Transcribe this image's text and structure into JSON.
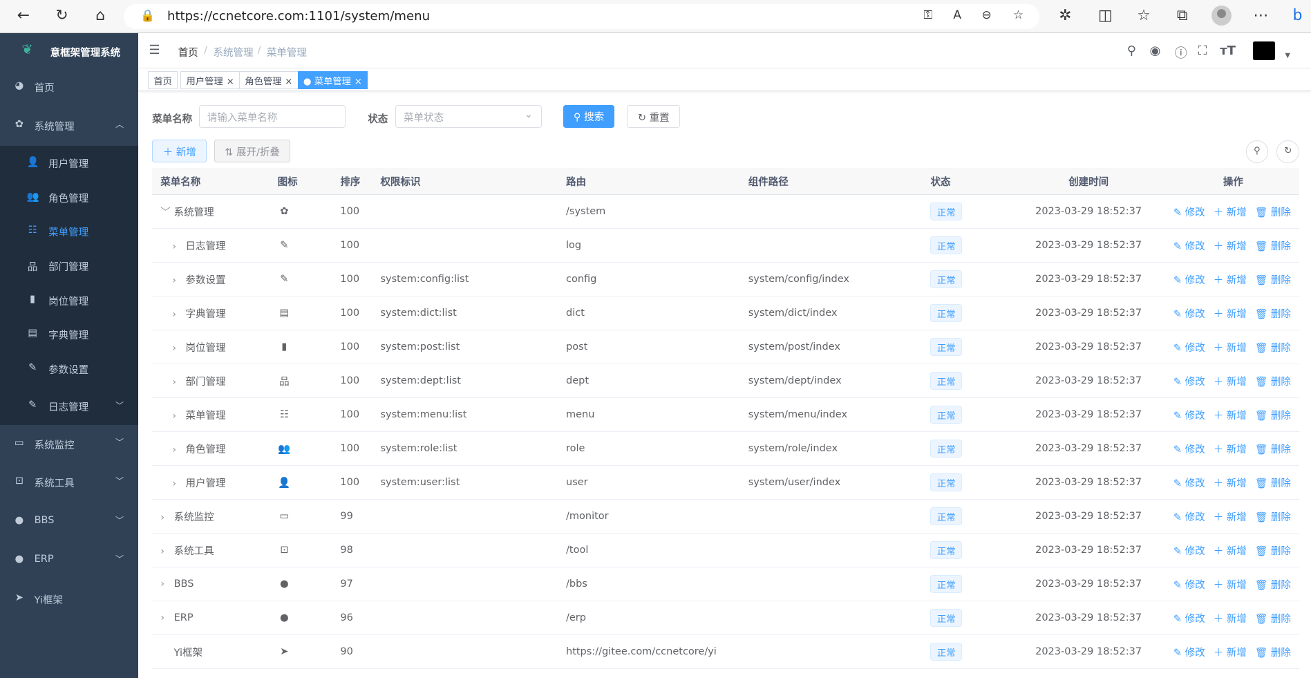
{
  "browser": {
    "url": "https://ccnetcore.com:1101/system/menu"
  },
  "sidebar": {
    "title": "意框架管理系统",
    "items": [
      {
        "label": "首页",
        "icon": "dashboard-icon",
        "glyph": "◕"
      },
      {
        "label": "系统管理",
        "icon": "gear-icon",
        "glyph": "✿",
        "expanded": true
      },
      {
        "label": "系统监控",
        "icon": "monitor-icon",
        "glyph": "▭"
      },
      {
        "label": "系统工具",
        "icon": "toolbox-icon",
        "glyph": "⊡"
      },
      {
        "label": "BBS",
        "icon": "globe-icon",
        "glyph": "●"
      },
      {
        "label": "ERP",
        "icon": "globe-icon",
        "glyph": "●"
      },
      {
        "label": "Yi框架",
        "icon": "send-icon",
        "glyph": "➤"
      }
    ],
    "sub": [
      {
        "label": "用户管理",
        "glyph": "👤"
      },
      {
        "label": "角色管理",
        "glyph": "👥"
      },
      {
        "label": "菜单管理",
        "glyph": "☷",
        "active": true
      },
      {
        "label": "部门管理",
        "glyph": "品"
      },
      {
        "label": "岗位管理",
        "glyph": "▮"
      },
      {
        "label": "字典管理",
        "glyph": "▤"
      },
      {
        "label": "参数设置",
        "glyph": "✎"
      },
      {
        "label": "日志管理",
        "glyph": "✎"
      }
    ]
  },
  "breadcrumb": [
    "首页",
    "系统管理",
    "菜单管理"
  ],
  "tags": [
    {
      "label": "首页"
    },
    {
      "label": "用户管理"
    },
    {
      "label": "角色管理"
    },
    {
      "label": "菜单管理",
      "active": true
    }
  ],
  "search": {
    "name_label": "菜单名称",
    "name_placeholder": "请输入菜单名称",
    "status_label": "状态",
    "status_placeholder": "菜单状态",
    "search": "搜索",
    "reset": "重置"
  },
  "toolbar": {
    "add": "新增",
    "toggle": "展开/折叠"
  },
  "table": {
    "headers": [
      "菜单名称",
      "图标",
      "排序",
      "权限标识",
      "路由",
      "组件路径",
      "状态",
      "创建时间",
      "操作"
    ],
    "actions": [
      "修改",
      "新增",
      "删除"
    ],
    "rows": [
      {
        "name": "系统管理",
        "level": 0,
        "arrow": "﹀",
        "icon": "✿",
        "order": "100",
        "perm": "",
        "route": "/system",
        "comp": "",
        "status": "正常",
        "time": "2023-03-29 18:52:37"
      },
      {
        "name": "日志管理",
        "level": 1,
        "arrow": "›",
        "icon": "✎",
        "order": "100",
        "perm": "",
        "route": "log",
        "comp": "",
        "status": "正常",
        "time": "2023-03-29 18:52:37"
      },
      {
        "name": "参数设置",
        "level": 1,
        "arrow": "›",
        "icon": "✎",
        "order": "100",
        "perm": "system:config:list",
        "route": "config",
        "comp": "system/config/index",
        "status": "正常",
        "time": "2023-03-29 18:52:37"
      },
      {
        "name": "字典管理",
        "level": 1,
        "arrow": "›",
        "icon": "▤",
        "order": "100",
        "perm": "system:dict:list",
        "route": "dict",
        "comp": "system/dict/index",
        "status": "正常",
        "time": "2023-03-29 18:52:37"
      },
      {
        "name": "岗位管理",
        "level": 1,
        "arrow": "›",
        "icon": "▮",
        "order": "100",
        "perm": "system:post:list",
        "route": "post",
        "comp": "system/post/index",
        "status": "正常",
        "time": "2023-03-29 18:52:37"
      },
      {
        "name": "部门管理",
        "level": 1,
        "arrow": "›",
        "icon": "品",
        "order": "100",
        "perm": "system:dept:list",
        "route": "dept",
        "comp": "system/dept/index",
        "status": "正常",
        "time": "2023-03-29 18:52:37"
      },
      {
        "name": "菜单管理",
        "level": 1,
        "arrow": "›",
        "icon": "☷",
        "order": "100",
        "perm": "system:menu:list",
        "route": "menu",
        "comp": "system/menu/index",
        "status": "正常",
        "time": "2023-03-29 18:52:37"
      },
      {
        "name": "角色管理",
        "level": 1,
        "arrow": "›",
        "icon": "👥",
        "order": "100",
        "perm": "system:role:list",
        "route": "role",
        "comp": "system/role/index",
        "status": "正常",
        "time": "2023-03-29 18:52:37"
      },
      {
        "name": "用户管理",
        "level": 1,
        "arrow": "›",
        "icon": "👤",
        "order": "100",
        "perm": "system:user:list",
        "route": "user",
        "comp": "system/user/index",
        "status": "正常",
        "time": "2023-03-29 18:52:37"
      },
      {
        "name": "系统监控",
        "level": 0,
        "arrow": "›",
        "icon": "▭",
        "order": "99",
        "perm": "",
        "route": "/monitor",
        "comp": "",
        "status": "正常",
        "time": "2023-03-29 18:52:37"
      },
      {
        "name": "系统工具",
        "level": 0,
        "arrow": "›",
        "icon": "⊡",
        "order": "98",
        "perm": "",
        "route": "/tool",
        "comp": "",
        "status": "正常",
        "time": "2023-03-29 18:52:37"
      },
      {
        "name": "BBS",
        "level": 0,
        "arrow": "›",
        "icon": "●",
        "order": "97",
        "perm": "",
        "route": "/bbs",
        "comp": "",
        "status": "正常",
        "time": "2023-03-29 18:52:37"
      },
      {
        "name": "ERP",
        "level": 0,
        "arrow": "›",
        "icon": "●",
        "order": "96",
        "perm": "",
        "route": "/erp",
        "comp": "",
        "status": "正常",
        "time": "2023-03-29 18:52:37"
      },
      {
        "name": "Yi框架",
        "level": 0,
        "arrow": "",
        "icon": "➤",
        "order": "90",
        "perm": "",
        "route": "https://gitee.com/ccnetcore/yi",
        "comp": "",
        "status": "正常",
        "time": "2023-03-29 18:52:37"
      }
    ]
  },
  "colors": {
    "sidebar": "#304156",
    "submenu": "#1f2d3d",
    "primary": "#409eff"
  }
}
